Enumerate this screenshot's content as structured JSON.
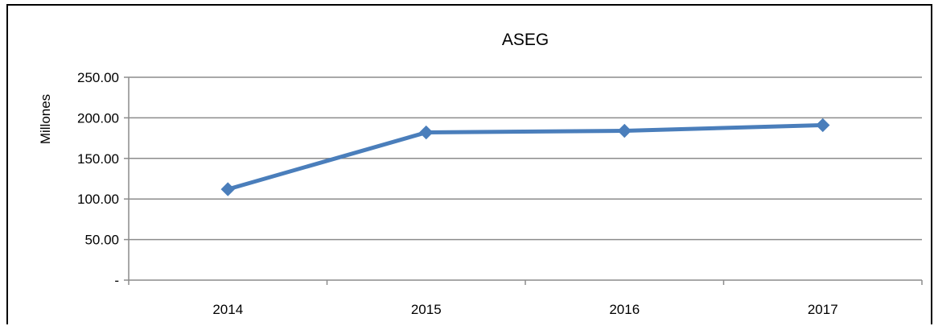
{
  "chart_data": {
    "type": "line",
    "title": "ASEG",
    "xlabel": "",
    "ylabel": "Millones",
    "categories": [
      "2014",
      "2015",
      "2016",
      "2017"
    ],
    "series": [
      {
        "values": [
          112,
          182,
          184,
          191
        ],
        "color": "#4A7EBB"
      }
    ],
    "ylim": [
      0,
      250
    ],
    "yticks": [
      {
        "value": 0,
        "label": "-"
      },
      {
        "value": 50,
        "label": "50.00"
      },
      {
        "value": 100,
        "label": "100.00"
      },
      {
        "value": 150,
        "label": "150.00"
      },
      {
        "value": 200,
        "label": "200.00"
      },
      {
        "value": 250,
        "label": "250.00"
      }
    ],
    "grid": true,
    "gridColor": "#8C8C8C",
    "legend": "none",
    "marker": "diamond"
  }
}
